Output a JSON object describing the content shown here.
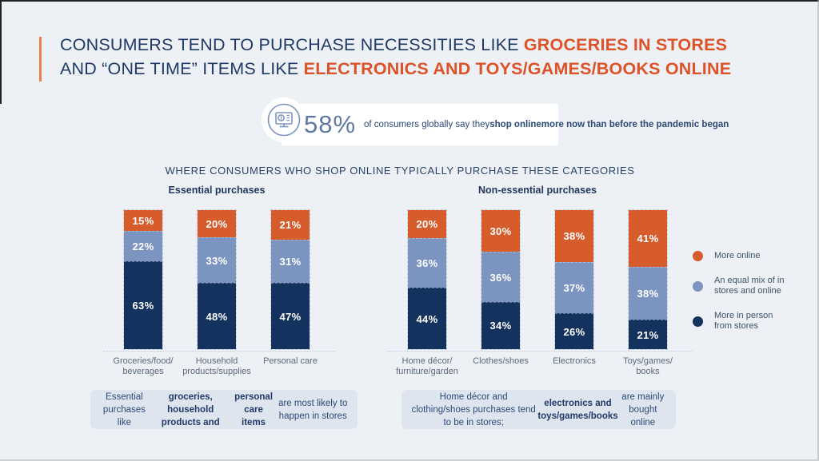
{
  "page": {
    "background": "#EDF0F4"
  },
  "title": {
    "accent_color": "#E8804E",
    "text_color": "#1F3A66",
    "highlight_color": "#DE5227",
    "lines": [
      [
        {
          "t": "CONSUMERS TEND TO PURCHASE NECESSITIES LIKE ",
          "b": false
        },
        {
          "t": "GROCERIES IN STORES",
          "b": true
        }
      ],
      [
        {
          "t": "AND “ONE TIME” ITEMS LIKE ",
          "b": false
        },
        {
          "t": "ELECTRONICS AND TOYS/GAMES/BOOKS ONLINE",
          "b": true
        }
      ]
    ]
  },
  "stat": {
    "icon": "online-shopping-monitor-icon",
    "value": "58%",
    "lines": [
      [
        {
          "t": "of consumers globally say they ",
          "b": false
        },
        {
          "t": "shop online",
          "b": true
        }
      ],
      [
        {
          "t": "more now than before the pandemic began",
          "b": true
        }
      ]
    ]
  },
  "section": {
    "heading": "WHERE CONSUMERS WHO SHOP ONLINE TYPICALLY PURCHASE THESE CATEGORIES"
  },
  "legend": {
    "position": "right",
    "items": [
      {
        "key": "more_online",
        "label": "More online",
        "lines": [
          "More online"
        ],
        "color": "#D65C2B"
      },
      {
        "key": "equal_mix",
        "label": "An equal mix of in stores and online",
        "lines": [
          "An equal mix of in",
          "stores and online"
        ],
        "color": "#7C94C0"
      },
      {
        "key": "in_person",
        "label": "More in person from stores",
        "lines": [
          "More in person",
          "from stores"
        ],
        "color": "#14325E"
      }
    ]
  },
  "chart_data": [
    {
      "type": "bar",
      "stacked": true,
      "orientation": "vertical",
      "unit": "%",
      "ylim": [
        0,
        100
      ],
      "grid": false,
      "value_labels": "white bold percent centered on each segment",
      "title": "Essential purchases",
      "categories": [
        "Groceries/food/beverages",
        "Household products/supplies",
        "Personal care"
      ],
      "category_label_lines": [
        [
          "Groceries/food/",
          "beverages"
        ],
        [
          "Household",
          "products/supplies"
        ],
        [
          "Personal care"
        ]
      ],
      "series": [
        {
          "name": "More online",
          "key": "more_online",
          "color": "#D65C2B",
          "values": [
            15,
            20,
            21
          ]
        },
        {
          "name": "An equal mix of in stores and online",
          "key": "equal_mix",
          "color": "#7C94C0",
          "values": [
            22,
            33,
            31
          ]
        },
        {
          "name": "More in person from stores",
          "key": "in_person",
          "color": "#14325E",
          "values": [
            63,
            48,
            47
          ]
        }
      ]
    },
    {
      "type": "bar",
      "stacked": true,
      "orientation": "vertical",
      "unit": "%",
      "ylim": [
        0,
        100
      ],
      "grid": false,
      "value_labels": "white bold percent centered on each segment",
      "title": "Non-essential purchases",
      "categories": [
        "Home décor/furniture/garden",
        "Clothes/shoes",
        "Electronics",
        "Toys/games/books"
      ],
      "category_label_lines": [
        [
          "Home décor/",
          "furniture/garden"
        ],
        [
          "Clothes/shoes"
        ],
        [
          "Electronics"
        ],
        [
          "Toys/games/",
          "books"
        ]
      ],
      "series": [
        {
          "name": "More online",
          "key": "more_online",
          "color": "#D65C2B",
          "values": [
            20,
            30,
            38,
            41
          ]
        },
        {
          "name": "An equal mix of in stores and online",
          "key": "equal_mix",
          "color": "#7C94C0",
          "values": [
            36,
            36,
            37,
            38
          ]
        },
        {
          "name": "More in person from stores",
          "key": "in_person",
          "color": "#14325E",
          "values": [
            44,
            34,
            26,
            21
          ]
        }
      ]
    }
  ],
  "captions": [
    {
      "lines": [
        [
          {
            "t": "Essential purchases like ",
            "b": false
          },
          {
            "t": "groceries, household products and",
            "b": true
          }
        ],
        [
          {
            "t": "personal care items",
            "b": true
          },
          {
            "t": " are most likely to happen in stores",
            "b": false
          }
        ]
      ]
    },
    {
      "lines": [
        [
          {
            "t": "Home décor and clothing/shoes purchases tend to be in stores;",
            "b": false
          }
        ],
        [
          {
            "t": "electronics and toys/games/books",
            "b": true
          },
          {
            "t": " are mainly bought online",
            "b": false
          }
        ]
      ]
    }
  ],
  "colors": {
    "background": "#EDF0F4",
    "title_navy": "#1F3A66",
    "title_orange": "#DE5227",
    "bar_orange": "#D65C2B",
    "bar_steel_blue": "#7C94C0",
    "bar_navy": "#14325E",
    "category_label": "#5C6A7D",
    "caption_background": "#DFE5EF",
    "stat_number": "#5E79A4",
    "stat_text": "#2B4A78"
  }
}
